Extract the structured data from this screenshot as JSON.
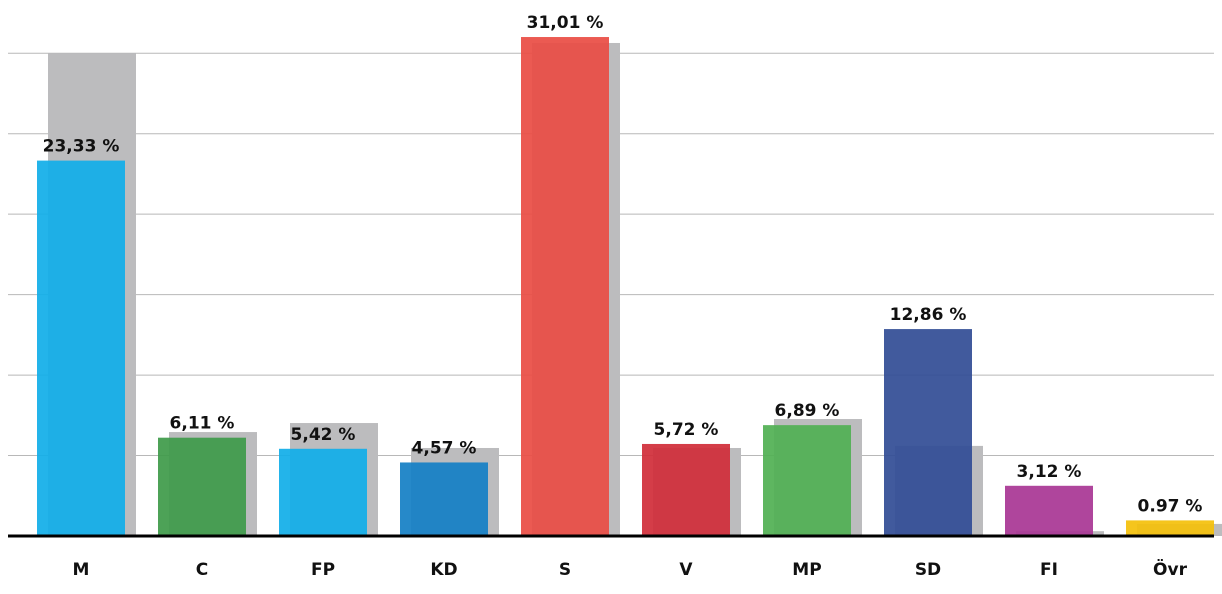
{
  "chart_data": {
    "type": "bar",
    "categories": [
      "M",
      "C",
      "FP",
      "KD",
      "S",
      "V",
      "MP",
      "SD",
      "FI",
      "Övr"
    ],
    "series": [
      {
        "color": "#bcbcbe",
        "values": [
          30.0,
          6.46,
          7.02,
          5.47,
          30.64,
          5.47,
          7.27,
          5.6,
          0.3,
          0.75
        ]
      },
      {
        "colors": [
          "#12aee8",
          "#3f9b4a",
          "#12aee8",
          "#1680c5",
          "#ea4e45",
          "#d12e3a",
          "#52b054",
          "#334d96",
          "#a93795",
          "#f4c10c"
        ],
        "values": [
          23.33,
          6.11,
          5.42,
          4.57,
          31.01,
          5.72,
          6.89,
          12.86,
          3.12,
          0.97
        ],
        "value_labels": [
          "23,33 %",
          "6,11 %",
          "5,42 %",
          "4,57 %",
          "31,01 %",
          "5,72 %",
          "6,89 %",
          "12,86 %",
          "3,12 %",
          "0.97 %"
        ]
      }
    ],
    "ylim": [
      0,
      33
    ],
    "yticks": [
      5,
      10,
      15,
      20,
      25,
      30
    ],
    "grid": true
  }
}
